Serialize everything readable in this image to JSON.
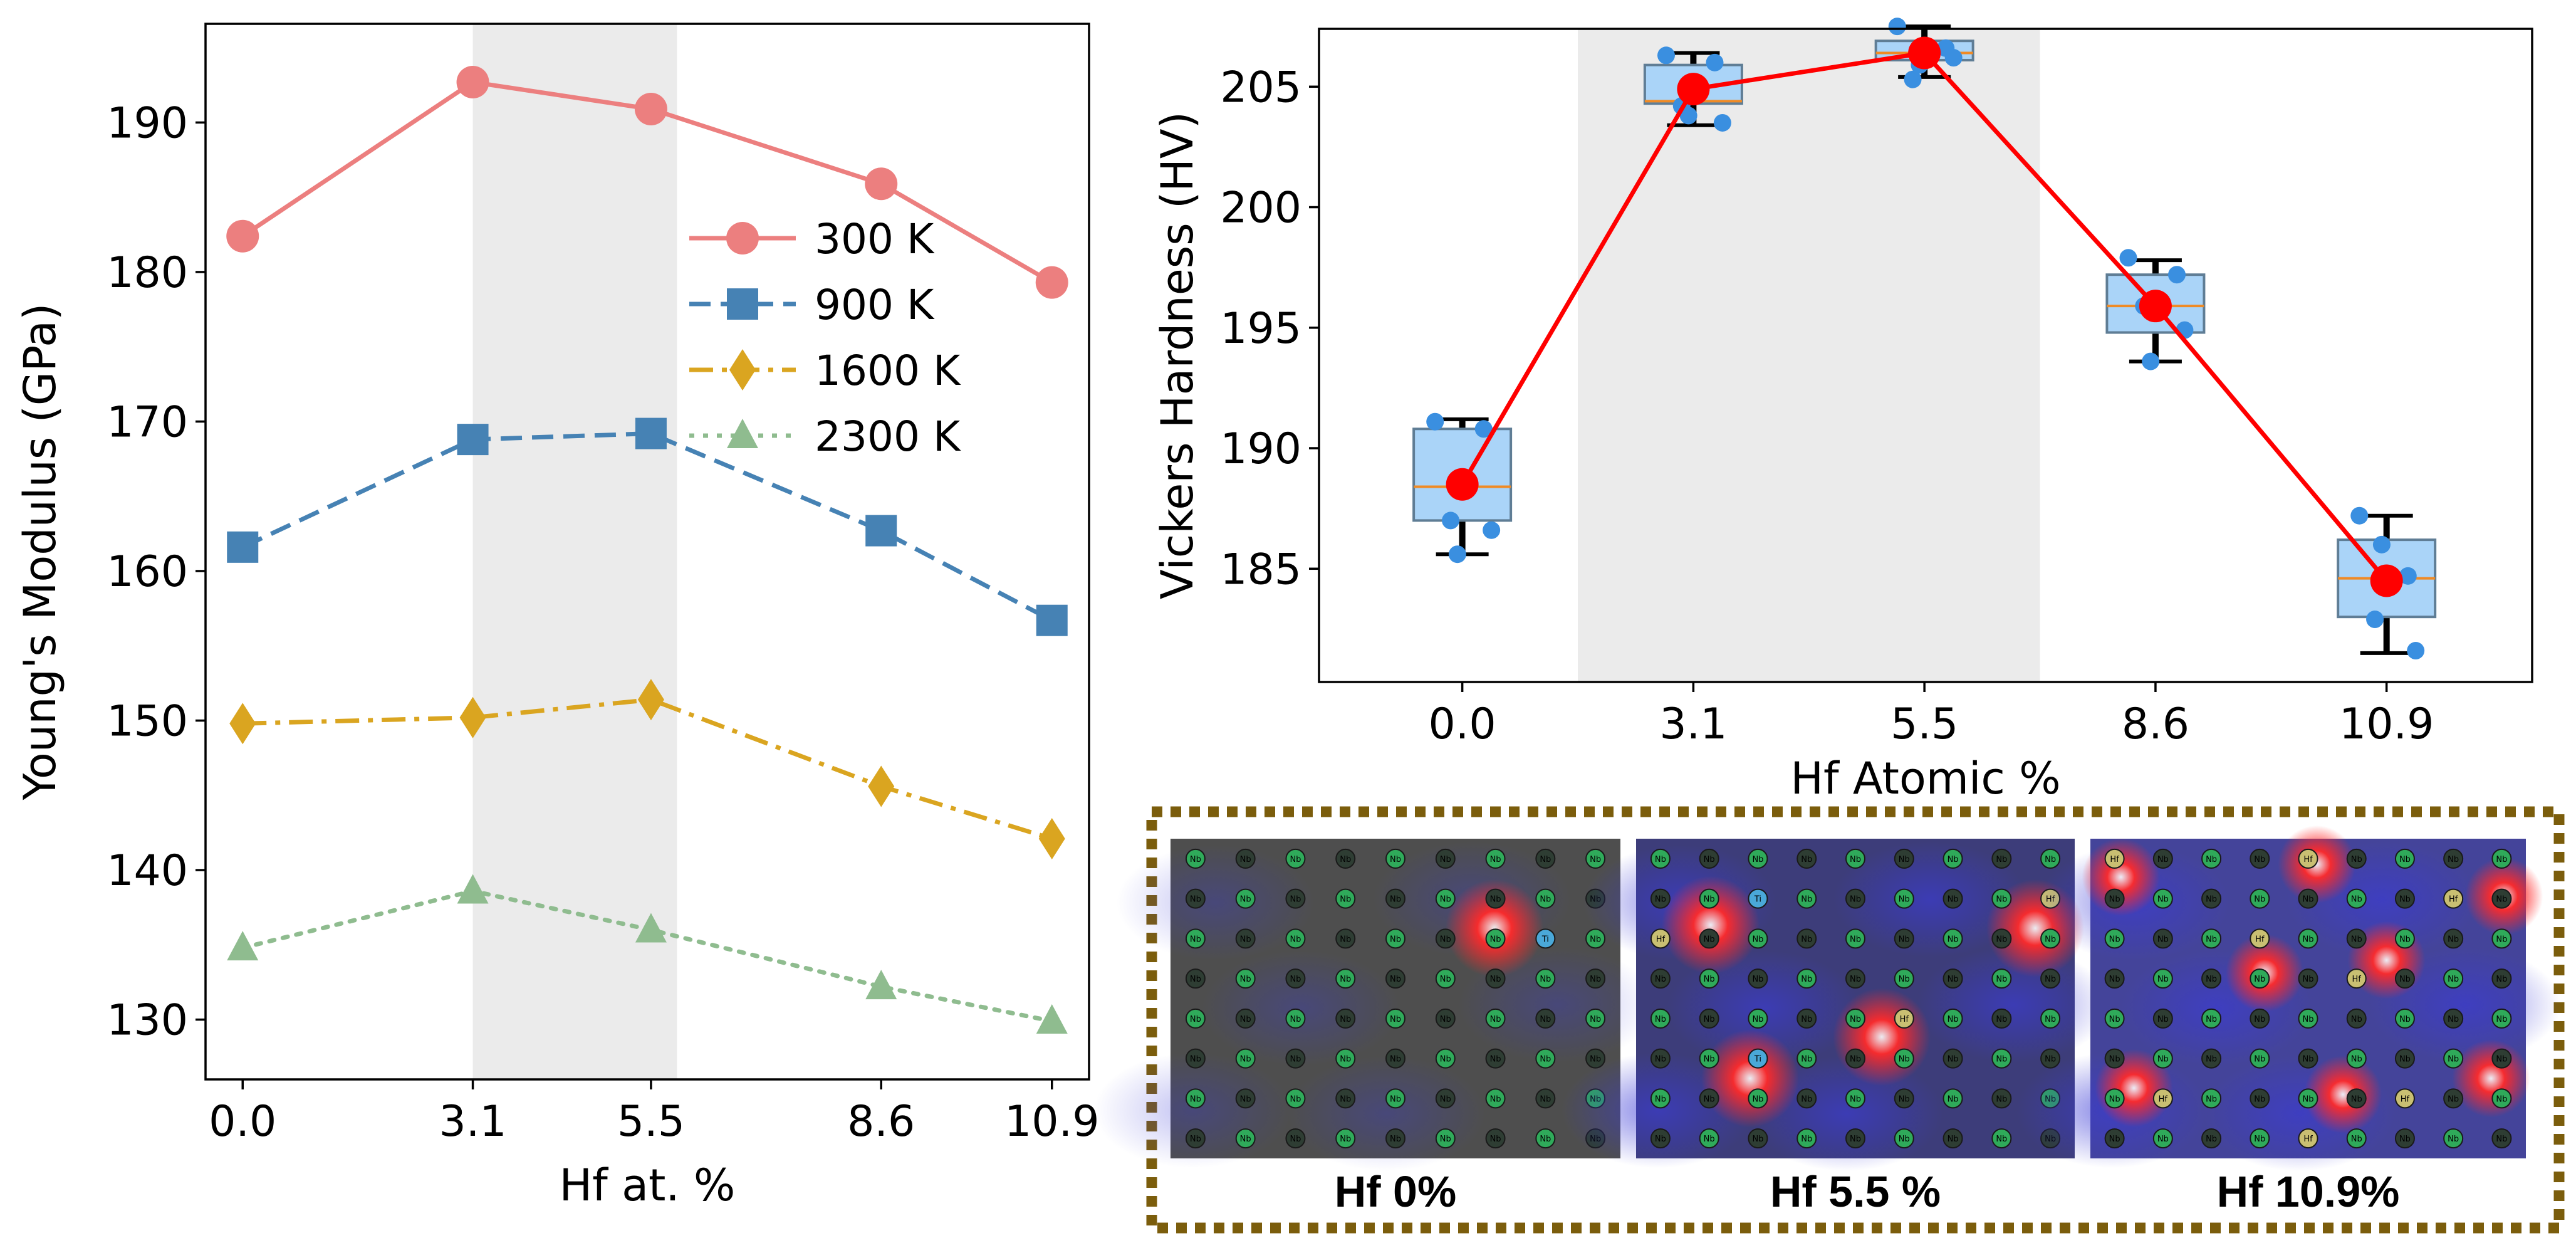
{
  "chart_data": [
    {
      "type": "line",
      "xlabel": "Hf at. %",
      "ylabel": "Young's Modulus (GPa)",
      "x": [
        0.0,
        3.1,
        5.5,
        8.6,
        10.9
      ],
      "x_tick_labels": [
        "0.0",
        "3.1",
        "5.5",
        "8.6",
        "10.9"
      ],
      "xlim": [
        -0.5,
        11.4
      ],
      "ylim": [
        126,
        196.6
      ],
      "y_ticks": [
        130,
        140,
        150,
        160,
        170,
        180,
        190
      ],
      "shaded_region": [
        3.1,
        5.85
      ],
      "legend_placement": "upper-right",
      "series": [
        {
          "name": "300 K",
          "values": [
            182.4,
            192.7,
            190.9,
            185.9,
            179.3
          ],
          "color": "#ec7f7f",
          "marker": "circle",
          "line_style": "solid"
        },
        {
          "name": "900 K",
          "values": [
            161.6,
            168.8,
            169.2,
            162.7,
            156.7
          ],
          "color": "#4682b4",
          "marker": "square",
          "line_style": "dashed"
        },
        {
          "name": "1600 K",
          "values": [
            149.8,
            150.2,
            151.4,
            145.6,
            142.1
          ],
          "color": "#daa520",
          "marker": "diamond",
          "line_style": "dashdot"
        },
        {
          "name": "2300 K",
          "values": [
            134.8,
            138.6,
            136.0,
            132.2,
            129.9
          ],
          "color": "#8fbc8f",
          "marker": "triangle",
          "line_style": "dotted"
        }
      ]
    },
    {
      "type": "box",
      "xlabel": "Hf Atomic %",
      "ylabel": "Vickers Hardness (HV)",
      "categories": [
        "0.0",
        "3.1",
        "5.5",
        "8.6",
        "10.9"
      ],
      "ylim": [
        180.3,
        207.4
      ],
      "y_ticks": [
        185,
        190,
        195,
        200,
        205
      ],
      "shaded_region": [
        "3.1",
        "5.5"
      ],
      "boxes": [
        {
          "q1": 187.0,
          "median": 188.4,
          "q3": 190.8,
          "whisker_low": 185.6,
          "whisker_high": 191.2,
          "mean": 188.5,
          "points": [
            191.1,
            190.8,
            187.0,
            186.6,
            185.6
          ]
        },
        {
          "q1": 204.3,
          "median": 204.4,
          "q3": 205.9,
          "whisker_low": 203.4,
          "whisker_high": 206.4,
          "mean": 204.9,
          "points": [
            206.3,
            206.0,
            204.2,
            203.5,
            203.8
          ]
        },
        {
          "q1": 206.1,
          "median": 206.4,
          "q3": 206.9,
          "whisker_low": 205.4,
          "whisker_high": 207.5,
          "mean": 206.4,
          "points": [
            207.5,
            206.6,
            205.3,
            206.2,
            205.9
          ]
        },
        {
          "q1": 194.8,
          "median": 195.9,
          "q3": 197.2,
          "whisker_low": 193.6,
          "whisker_high": 197.8,
          "mean": 195.9,
          "points": [
            197.9,
            197.2,
            195.9,
            194.9,
            193.6
          ]
        },
        {
          "q1": 183.0,
          "median": 184.6,
          "q3": 186.2,
          "whisker_low": 181.5,
          "whisker_high": 187.2,
          "mean": 184.5,
          "points": [
            187.2,
            184.7,
            182.9,
            181.6,
            186.0
          ]
        }
      ],
      "mean_line_color": "#ff0000",
      "box_color": "#aad4f8",
      "point_color": "#3a8fe0"
    }
  ],
  "panels": {
    "captions": [
      "Hf 0%",
      "Hf 5.5 %",
      "Hf 10.9%"
    ],
    "atom_labels": {
      "nb": "Nb",
      "ti": "Ti",
      "hf": "Hf"
    },
    "border_color": "#7b5d0c"
  }
}
